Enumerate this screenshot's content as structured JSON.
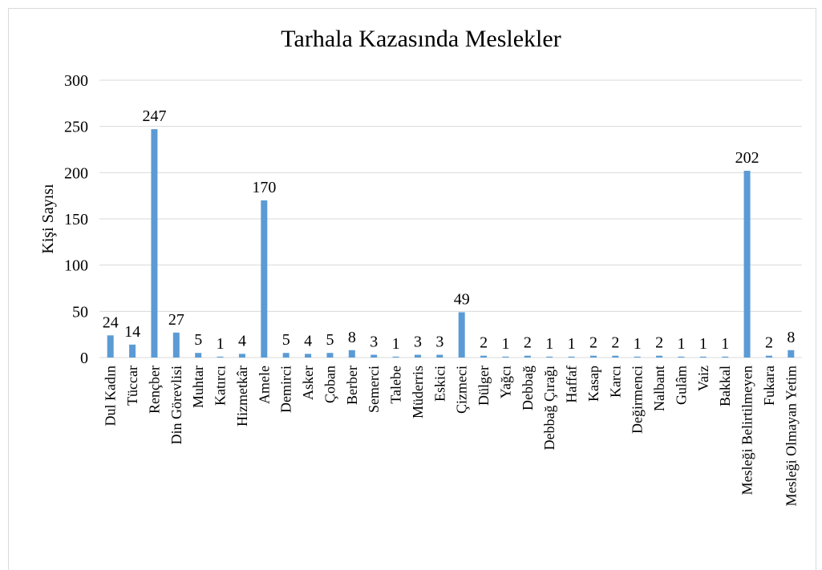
{
  "chart_data": {
    "type": "bar",
    "title": "Tarhala Kazasında Meslekler",
    "y_label": "Kişi Sayısı",
    "categories": [
      "Dul Kadın",
      "Tüccar",
      "Rençber",
      "Din Görevlisi",
      "Muhtar",
      "Katırcı",
      "Hizmetkâr",
      "Amele",
      "Demirci",
      "Asker",
      "Çoban",
      "Berber",
      "Semerci",
      "Talebe",
      "Müderris",
      "Eskici",
      "Çizmeci",
      "Dülger",
      "Yağcı",
      "Debbağ",
      "Debbağ Çırağı",
      "Haffaf",
      "Kasap",
      "Karcı",
      "Değirmenci",
      "Nalbant",
      "Gulâm",
      "Vaiz",
      "Bakkal",
      "Mesleği Belirtilmeyen",
      "Fukara",
      "Mesleği Olmayan Yetim"
    ],
    "values": [
      24,
      14,
      247,
      27,
      5,
      1,
      4,
      170,
      5,
      4,
      5,
      8,
      3,
      1,
      3,
      3,
      49,
      2,
      1,
      2,
      1,
      1,
      2,
      2,
      1,
      2,
      1,
      1,
      1,
      202,
      2,
      8
    ],
    "color": "#5b9bd5",
    "ylim": [
      0,
      300
    ],
    "yticks": [
      0,
      50,
      100,
      150,
      200,
      250,
      300
    ],
    "grid": true
  }
}
